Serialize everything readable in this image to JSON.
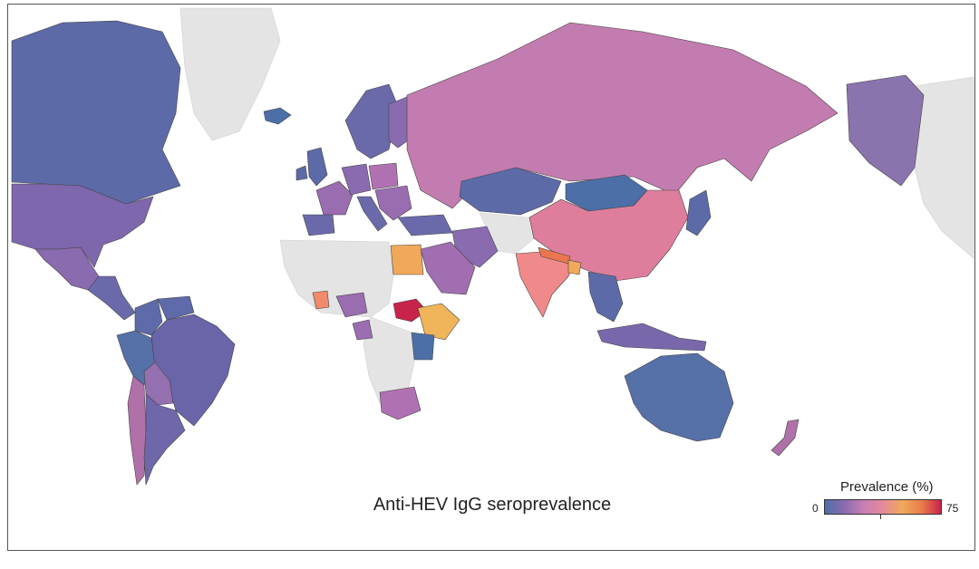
{
  "title": "Anti-HEV IgG seroprevalence",
  "legend": {
    "title": "Prevalence (%)",
    "min_label": "0",
    "max_label": "75",
    "min": 0,
    "max": 75,
    "color_stops": [
      "#4d6fa8",
      "#8a6bb0",
      "#c77fb3",
      "#e48a9a",
      "#f0a95a",
      "#e97d4a",
      "#c8234a"
    ]
  },
  "map": {
    "type": "choropleth",
    "projection": "world map centred on Europe/Africa, Americas on the left, Alaska repeated on the right",
    "no_data_color": "#e4e4e4",
    "regions": [
      {
        "name": "Canada",
        "color": "#5c6aa8"
      },
      {
        "name": "Greenland",
        "color": "#e4e4e4"
      },
      {
        "name": "United States",
        "color": "#7e67ad"
      },
      {
        "name": "Mexico",
        "color": "#8a6bb0"
      },
      {
        "name": "Central America",
        "color": "#6a6aab"
      },
      {
        "name": "Colombia",
        "color": "#5e6aa9"
      },
      {
        "name": "Venezuela",
        "color": "#5e6aa9"
      },
      {
        "name": "Peru",
        "color": "#5670a8"
      },
      {
        "name": "Brazil",
        "color": "#6a64a8"
      },
      {
        "name": "Bolivia",
        "color": "#9470b0"
      },
      {
        "name": "Chile",
        "color": "#b070a8"
      },
      {
        "name": "Argentina",
        "color": "#6e68aa"
      },
      {
        "name": "Iceland",
        "color": "#4d6fa8"
      },
      {
        "name": "Ireland",
        "color": "#5c6aa8"
      },
      {
        "name": "United Kingdom",
        "color": "#5c6aa8"
      },
      {
        "name": "Scandinavia",
        "color": "#6a6aab"
      },
      {
        "name": "Finland",
        "color": "#8a6bb0"
      },
      {
        "name": "France",
        "color": "#9a6cb0"
      },
      {
        "name": "Spain",
        "color": "#6a6aab"
      },
      {
        "name": "Germany",
        "color": "#8a6bb0"
      },
      {
        "name": "Poland",
        "color": "#b071b2"
      },
      {
        "name": "Italy",
        "color": "#6a6aab"
      },
      {
        "name": "Balkans",
        "color": "#9a6cb0"
      },
      {
        "name": "Turkey",
        "color": "#6a6aab"
      },
      {
        "name": "Russia",
        "color": "#c37caf"
      },
      {
        "name": "Kazakhstan",
        "color": "#5c6aa8"
      },
      {
        "name": "Mongolia",
        "color": "#4d6fa8"
      },
      {
        "name": "China",
        "color": "#de7e9c"
      },
      {
        "name": "Iran",
        "color": "#8a6bb0"
      },
      {
        "name": "Saudi Arabia",
        "color": "#a06eb1"
      },
      {
        "name": "Egypt",
        "color": "#f0a95a"
      },
      {
        "name": "India",
        "color": "#f08a8a"
      },
      {
        "name": "Nepal",
        "color": "#e9764e"
      },
      {
        "name": "Bangladesh",
        "color": "#f0a95a"
      },
      {
        "name": "Southeast Asia",
        "color": "#5c6aa8"
      },
      {
        "name": "Indonesia",
        "color": "#7868ab"
      },
      {
        "name": "Japan",
        "color": "#5c6aa8"
      },
      {
        "name": "Ghana",
        "color": "#f08a6a"
      },
      {
        "name": "Nigeria",
        "color": "#9a6cb0"
      },
      {
        "name": "Cameroon",
        "color": "#9a6cb0"
      },
      {
        "name": "South Sudan",
        "color": "#c8234a"
      },
      {
        "name": "Ethiopia",
        "color": "#f0b45a"
      },
      {
        "name": "Kenya",
        "color": "#4d6fa8"
      },
      {
        "name": "South Africa",
        "color": "#b071b2"
      },
      {
        "name": "Australia",
        "color": "#5670a8"
      },
      {
        "name": "New Zealand",
        "color": "#b070a8"
      },
      {
        "name": "Alaska",
        "color": "#8a74ae"
      }
    ]
  }
}
